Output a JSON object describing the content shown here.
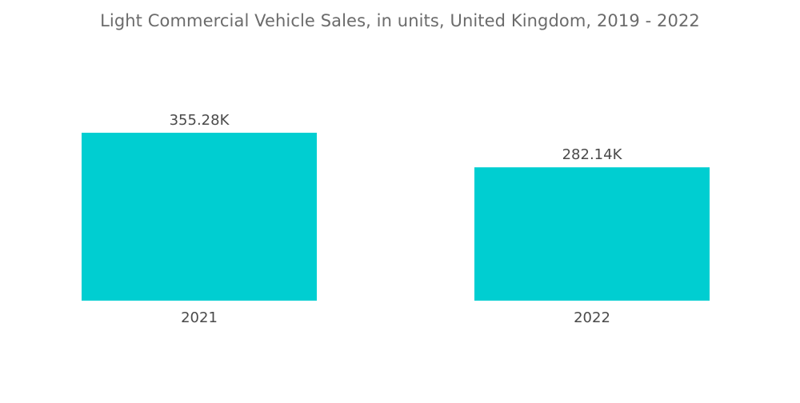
{
  "chart_data": {
    "type": "bar",
    "title": "Light Commercial Vehicle Sales, in units, United Kingdom, 2019 - 2022",
    "categories": [
      "2021",
      "2022"
    ],
    "values": [
      355.28,
      282.14
    ],
    "value_labels": [
      "355.28K",
      "282.14K"
    ],
    "unit": "K",
    "xlabel": "",
    "ylabel": "",
    "grid": false,
    "legend": "none",
    "colors": {
      "bar": "#00CED1",
      "text": "#4a4a4a",
      "title": "#6b6b6b"
    }
  }
}
